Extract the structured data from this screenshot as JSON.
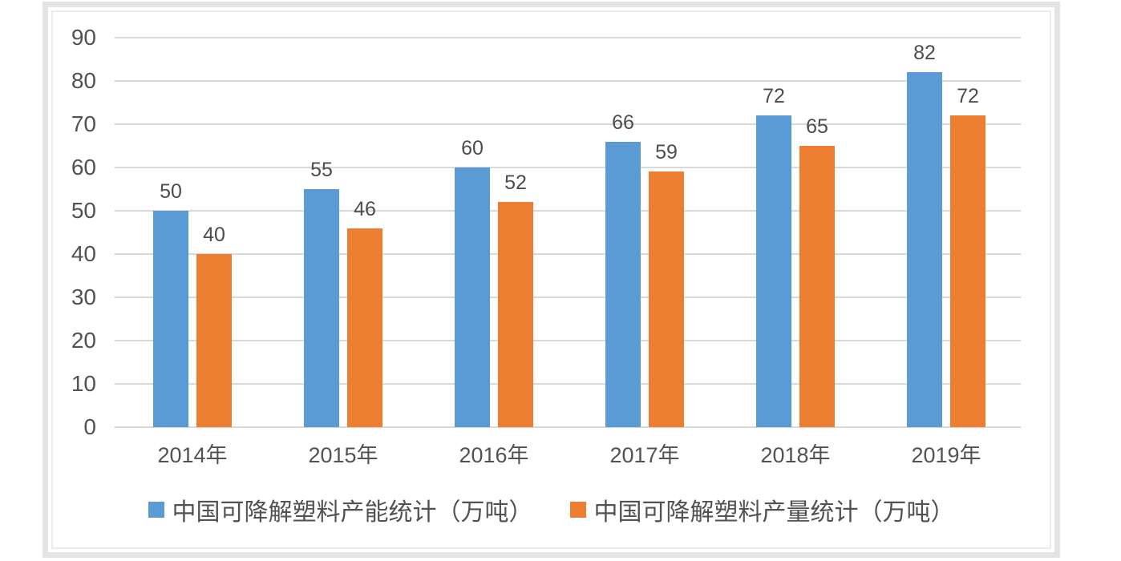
{
  "chart_data": {
    "type": "bar",
    "title": "",
    "xlabel": "",
    "ylabel": "",
    "categories": [
      "2014年",
      "2015年",
      "2016年",
      "2017年",
      "2018年",
      "2019年"
    ],
    "series": [
      {
        "name": "中国可降解塑料产能统计（万吨）",
        "values": [
          50,
          55,
          60,
          66,
          72,
          82
        ],
        "color": "#5B9BD5"
      },
      {
        "name": "中国可降解塑料产量统计（万吨）",
        "values": [
          40,
          46,
          52,
          59,
          65,
          72
        ],
        "color": "#ED7D31"
      }
    ],
    "y_ticks": [
      0,
      10,
      20,
      30,
      40,
      50,
      60,
      70,
      80,
      90
    ],
    "ylim": [
      0,
      90
    ],
    "grid": true,
    "data_labels": true,
    "legend_position": "bottom",
    "colors": {
      "gridline": "#d9d9d9",
      "axis_text": "#525252",
      "frame_border": "#e4e4e4",
      "background": "#ffffff"
    }
  }
}
